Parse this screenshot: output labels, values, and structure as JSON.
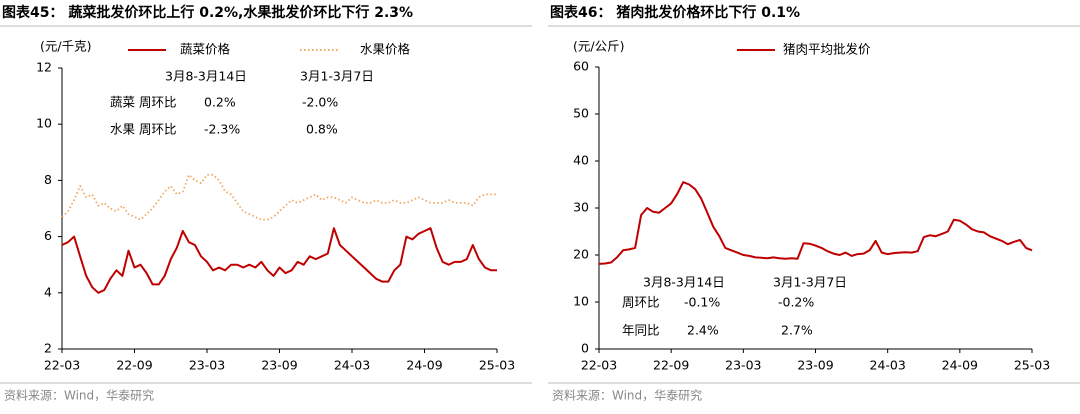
{
  "chart_data": [
    {
      "type": "line",
      "title": "图表45： 蔬菜批发价环比上行 0.2%,水果批发价环比下行 2.3%",
      "y_label": "(元/千克)",
      "source": "资料来源：Wind，华泰研究",
      "categories": [
        "22-03",
        null,
        null,
        null,
        null,
        null,
        null,
        null,
        null,
        null,
        null,
        null,
        "22-09",
        null,
        null,
        null,
        null,
        null,
        null,
        null,
        null,
        null,
        null,
        null,
        "23-03",
        null,
        null,
        null,
        null,
        null,
        null,
        null,
        null,
        null,
        null,
        null,
        "23-09",
        null,
        null,
        null,
        null,
        null,
        null,
        null,
        null,
        null,
        null,
        null,
        "24-03",
        null,
        null,
        null,
        null,
        null,
        null,
        null,
        null,
        null,
        null,
        null,
        "24-09",
        null,
        null,
        null,
        null,
        null,
        null,
        null,
        null,
        null,
        null,
        null,
        "25-03"
      ],
      "series": [
        {
          "name": "蔬菜价格",
          "color": "#c00000",
          "style": "solid",
          "values": [
            5.7,
            5.8,
            6.0,
            5.3,
            4.6,
            4.2,
            4.0,
            4.1,
            4.5,
            4.8,
            4.6,
            5.5,
            4.9,
            5.0,
            4.7,
            4.3,
            4.3,
            4.6,
            5.2,
            5.6,
            6.2,
            5.8,
            5.7,
            5.3,
            5.1,
            4.8,
            4.9,
            4.8,
            5.0,
            5.0,
            4.9,
            5.0,
            4.9,
            5.1,
            4.8,
            4.6,
            4.9,
            4.7,
            4.8,
            5.1,
            5.0,
            5.3,
            5.2,
            5.3,
            5.4,
            6.3,
            5.7,
            5.5,
            5.3,
            5.1,
            4.9,
            4.7,
            4.5,
            4.4,
            4.4,
            4.8,
            5.0,
            6.0,
            5.9,
            6.1,
            6.2,
            6.3,
            5.6,
            5.1,
            5.0,
            5.1,
            5.1,
            5.2,
            5.7,
            5.2,
            4.9,
            4.8,
            4.8
          ]
        },
        {
          "name": "水果价格",
          "color": "#f2a65e",
          "style": "dotted",
          "values": [
            6.7,
            6.9,
            7.3,
            7.8,
            7.4,
            7.5,
            7.1,
            7.2,
            7.0,
            6.9,
            7.1,
            6.8,
            6.7,
            6.6,
            6.8,
            7.0,
            7.3,
            7.6,
            7.8,
            7.5,
            7.6,
            8.2,
            8.0,
            7.9,
            8.2,
            8.2,
            8.0,
            7.6,
            7.5,
            7.2,
            6.9,
            6.8,
            6.7,
            6.6,
            6.6,
            6.7,
            6.9,
            7.1,
            7.3,
            7.2,
            7.3,
            7.4,
            7.5,
            7.3,
            7.4,
            7.4,
            7.3,
            7.2,
            7.4,
            7.3,
            7.2,
            7.2,
            7.3,
            7.2,
            7.2,
            7.3,
            7.2,
            7.2,
            7.3,
            7.4,
            7.3,
            7.2,
            7.2,
            7.2,
            7.3,
            7.2,
            7.2,
            7.2,
            7.1,
            7.4,
            7.5,
            7.5,
            7.5
          ]
        }
      ],
      "ylim": [
        2,
        12
      ],
      "yticks": [
        2,
        4,
        6,
        8,
        10,
        12
      ],
      "annotations": [
        "3月8-3月14日",
        "3月1-3月7日",
        "蔬菜 周环比",
        "0.2%",
        "-2.0%",
        "水果 周环比",
        "-2.3%",
        "0.8%"
      ]
    },
    {
      "type": "line",
      "title": "图表46： 猪肉批发价格环比下行 0.1%",
      "y_label": "(元/公斤)",
      "source": "资料来源：Wind，华泰研究",
      "categories": [
        "22-03",
        null,
        null,
        null,
        null,
        null,
        null,
        null,
        null,
        null,
        null,
        null,
        "22-09",
        null,
        null,
        null,
        null,
        null,
        null,
        null,
        null,
        null,
        null,
        null,
        "23-03",
        null,
        null,
        null,
        null,
        null,
        null,
        null,
        null,
        null,
        null,
        null,
        "23-09",
        null,
        null,
        null,
        null,
        null,
        null,
        null,
        null,
        null,
        null,
        null,
        "24-03",
        null,
        null,
        null,
        null,
        null,
        null,
        null,
        null,
        null,
        null,
        null,
        "24-09",
        null,
        null,
        null,
        null,
        null,
        null,
        null,
        null,
        null,
        null,
        null,
        "25-03"
      ],
      "series": [
        {
          "name": "猪肉平均批发价",
          "color": "#c00000",
          "style": "solid",
          "values": [
            18.1,
            18.2,
            18.4,
            19.5,
            21.0,
            21.2,
            21.5,
            28.5,
            30.0,
            29.2,
            29.0,
            30.0,
            31.0,
            33.0,
            35.5,
            35.0,
            34.0,
            32.0,
            29.0,
            26.0,
            24.0,
            21.5,
            21.0,
            20.5,
            20.0,
            19.8,
            19.5,
            19.4,
            19.3,
            19.5,
            19.3,
            19.2,
            19.3,
            19.2,
            22.5,
            22.4,
            22.0,
            21.5,
            20.8,
            20.3,
            20.0,
            20.5,
            19.8,
            20.2,
            20.3,
            21.0,
            23.0,
            20.5,
            20.2,
            20.4,
            20.5,
            20.6,
            20.5,
            20.8,
            23.8,
            24.2,
            24.0,
            24.5,
            25.0,
            27.5,
            27.3,
            26.5,
            25.5,
            25.0,
            24.8,
            24.0,
            23.5,
            23.0,
            22.3,
            22.8,
            23.2,
            21.5,
            21.0
          ]
        }
      ],
      "ylim": [
        0,
        60
      ],
      "yticks": [
        0,
        10,
        20,
        30,
        40,
        50,
        60
      ],
      "annotations": [
        "3月8-3月14日",
        "3月1-3月7日",
        "周环比",
        "-0.1%",
        "-0.2%",
        "年同比",
        "2.4%",
        "2.7%"
      ]
    }
  ]
}
